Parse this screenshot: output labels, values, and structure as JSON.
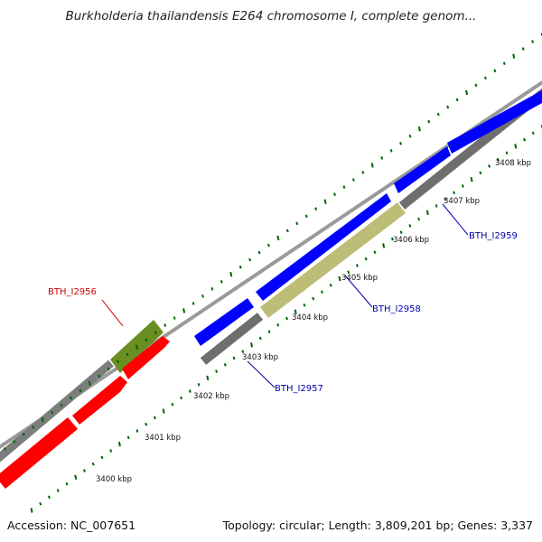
{
  "title": "Burkholderia thailandensis E264 chromosome I, complete genom...",
  "footer": {
    "accession": "Accession: NC_007651",
    "summary": "Topology: circular; Length: 3,809,201 bp; Genes: 3,337"
  },
  "ticks": [
    {
      "label": "3400 kbp"
    },
    {
      "label": "3401 kbp"
    },
    {
      "label": "3402 kbp"
    },
    {
      "label": "3403 kbp"
    },
    {
      "label": "3404 kbp"
    },
    {
      "label": "3405 kbp"
    },
    {
      "label": "3406 kbp"
    },
    {
      "label": "3407 kbp"
    },
    {
      "label": "3408 kbp"
    }
  ],
  "gene_labels": [
    {
      "text": "BTH_I2956",
      "color": "#cc0000"
    },
    {
      "text": "BTH_I2957",
      "color": "#0000aa"
    },
    {
      "text": "BTH_I2958",
      "color": "#0000aa"
    },
    {
      "text": "BTH_I2959",
      "color": "#0000aa"
    }
  ],
  "colors": {
    "forward_cds": "#0000ff",
    "reverse_cds": "#ff0000",
    "gene_track": "#808080",
    "highlight_forward": "#6b8e23",
    "highlight_reverse": "#bdb76b",
    "backbone": "#999999",
    "tick_marks": "#006400"
  }
}
